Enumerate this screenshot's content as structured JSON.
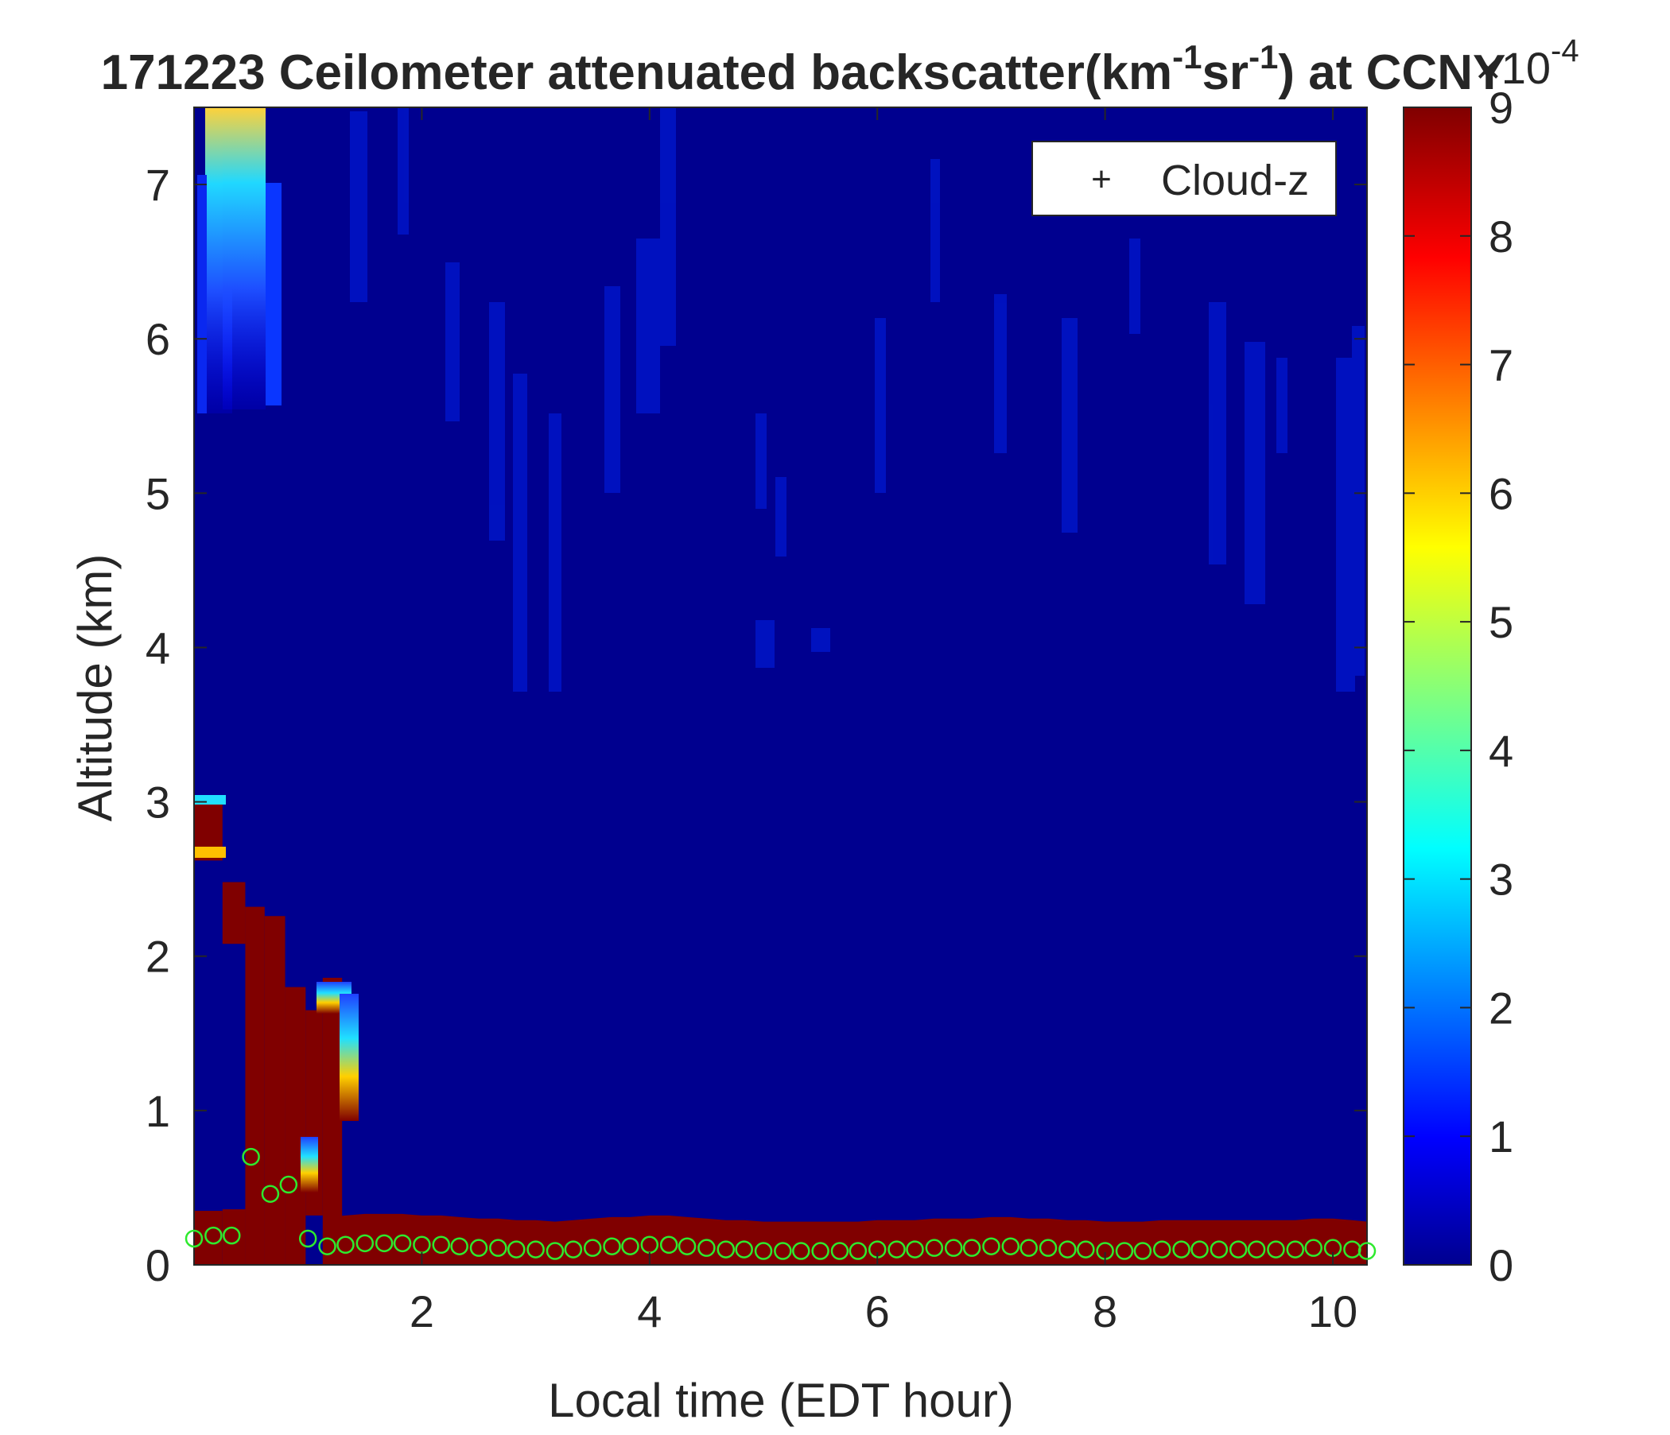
{
  "chart_data": {
    "type": "heatmap",
    "title_main": "171223 Ceilometer attenuated backscatter(km",
    "title_sup1": "-1",
    "title_mid": "sr",
    "title_sup2": "-1",
    "title_tail": ") at CCNY",
    "xlabel": "Local time (EDT hour)",
    "ylabel": "Altitude (km)",
    "xlim": [
      0,
      10.3
    ],
    "ylim": [
      0,
      7.5
    ],
    "x_ticks": [
      2,
      4,
      6,
      8,
      10
    ],
    "y_ticks": [
      0,
      1,
      2,
      3,
      4,
      5,
      6,
      7
    ],
    "colorbar": {
      "colormap": "jet",
      "range": [
        0,
        9
      ],
      "ticks": [
        0,
        1,
        2,
        3,
        4,
        5,
        6,
        7,
        8,
        9
      ],
      "exponent_base": "×10",
      "exponent": "-4"
    },
    "legend": {
      "position": "top-right",
      "entries": [
        {
          "symbol": "+",
          "label": "Cloud-z"
        }
      ]
    },
    "saturated_regions": [
      {
        "x0": 0.0,
        "x1": 0.25,
        "y0": 0.0,
        "y1": 0.35
      },
      {
        "x0": 0.25,
        "x1": 0.45,
        "y0": 0.0,
        "y1": 0.36
      },
      {
        "x0": 0.45,
        "x1": 0.62,
        "y0": 0.0,
        "y1": 0.38
      },
      {
        "x0": 0.0,
        "x1": 0.25,
        "y0": 2.62,
        "y1": 3.02
      },
      {
        "x0": 0.25,
        "x1": 0.45,
        "y0": 2.08,
        "y1": 2.48
      },
      {
        "x0": 0.45,
        "x1": 0.62,
        "y0": 0.0,
        "y1": 2.32
      },
      {
        "x0": 0.62,
        "x1": 0.8,
        "y0": 0.0,
        "y1": 2.26
      },
      {
        "x0": 0.8,
        "x1": 0.98,
        "y0": 0.0,
        "y1": 1.8
      },
      {
        "x0": 0.98,
        "x1": 1.13,
        "y0": 0.32,
        "y1": 1.65
      },
      {
        "x0": 1.13,
        "x1": 1.3,
        "y0": 0.0,
        "y1": 1.86
      }
    ],
    "cloud_z": {
      "x": [
        0.0,
        0.17,
        0.33,
        0.5,
        0.67,
        0.83,
        1.0,
        1.17,
        1.33,
        1.5,
        1.67,
        1.83,
        2.0,
        2.17,
        2.33,
        2.5,
        2.67,
        2.83,
        3.0,
        3.17,
        3.33,
        3.5,
        3.67,
        3.83,
        4.0,
        4.17,
        4.33,
        4.5,
        4.67,
        4.83,
        5.0,
        5.17,
        5.33,
        5.5,
        5.67,
        5.83,
        6.0,
        6.17,
        6.33,
        6.5,
        6.67,
        6.83,
        7.0,
        7.17,
        7.33,
        7.5,
        7.67,
        7.83,
        8.0,
        8.17,
        8.33,
        8.5,
        8.67,
        8.83,
        9.0,
        9.17,
        9.33,
        9.5,
        9.67,
        9.83,
        10.0,
        10.17,
        10.3
      ],
      "y": [
        0.17,
        0.19,
        0.19,
        0.7,
        0.46,
        0.52,
        0.17,
        0.12,
        0.13,
        0.14,
        0.14,
        0.14,
        0.13,
        0.13,
        0.12,
        0.11,
        0.11,
        0.1,
        0.1,
        0.09,
        0.1,
        0.11,
        0.12,
        0.12,
        0.13,
        0.13,
        0.12,
        0.11,
        0.1,
        0.1,
        0.09,
        0.09,
        0.09,
        0.09,
        0.09,
        0.09,
        0.1,
        0.1,
        0.1,
        0.11,
        0.11,
        0.11,
        0.12,
        0.12,
        0.11,
        0.11,
        0.1,
        0.1,
        0.09,
        0.09,
        0.09,
        0.1,
        0.1,
        0.1,
        0.1,
        0.1,
        0.1,
        0.1,
        0.1,
        0.11,
        0.11,
        0.1,
        0.09
      ]
    },
    "grid": false
  }
}
